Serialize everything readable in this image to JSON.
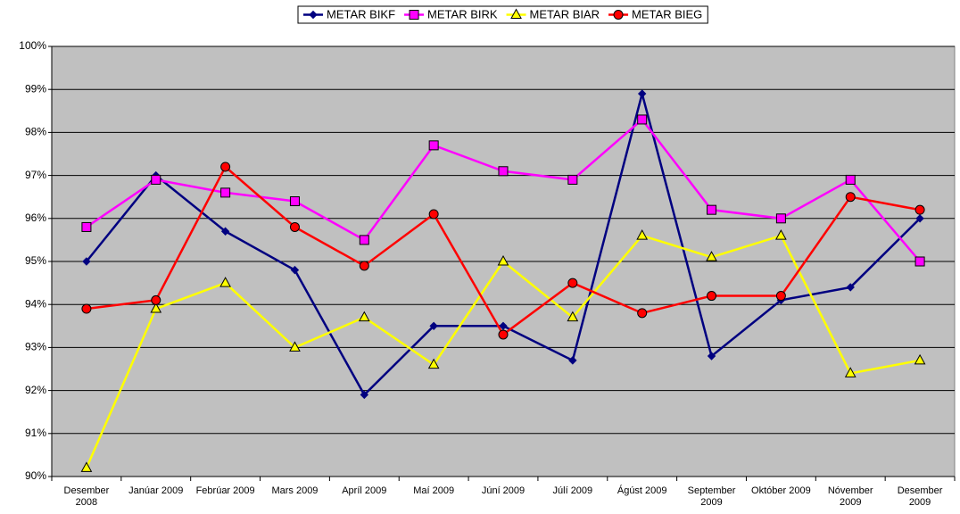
{
  "chart_data": {
    "type": "line",
    "categories": [
      "Desember 2008",
      "Janúar 2009",
      "Febrúar 2009",
      "Mars 2009",
      "Apríl 2009",
      "Maí 2009",
      "Júní 2009",
      "Júlí 2009",
      "Ágúst 2009",
      "September 2009",
      "Október 2009",
      "Nóvember 2009",
      "Desember 2009"
    ],
    "series": [
      {
        "name": "METAR BIKF",
        "color": "#000080",
        "marker": "diamond",
        "values": [
          95.0,
          97.0,
          95.7,
          94.8,
          91.9,
          93.5,
          93.5,
          92.7,
          98.9,
          92.8,
          94.1,
          94.4,
          96.0
        ]
      },
      {
        "name": "METAR BIRK",
        "color": "#ff00ff",
        "marker": "square",
        "values": [
          95.8,
          96.9,
          96.6,
          96.4,
          95.5,
          97.7,
          97.1,
          96.9,
          98.3,
          96.2,
          96.0,
          96.9,
          95.0
        ]
      },
      {
        "name": "METAR BIAR",
        "color": "#ffff00",
        "marker": "triangle",
        "values": [
          90.2,
          93.9,
          94.5,
          93.0,
          93.7,
          92.6,
          95.0,
          93.7,
          95.6,
          95.1,
          95.6,
          92.4,
          92.7
        ]
      },
      {
        "name": "METAR BIEG",
        "color": "#ff0000",
        "marker": "circle",
        "values": [
          93.9,
          94.1,
          97.2,
          95.8,
          94.9,
          96.1,
          93.3,
          94.5,
          93.8,
          94.2,
          94.2,
          96.5,
          96.2
        ]
      }
    ],
    "ylim": [
      90,
      100
    ],
    "yticks": [
      {
        "value": 90,
        "label": "90%"
      },
      {
        "value": 91,
        "label": "91%"
      },
      {
        "value": 92,
        "label": "92%"
      },
      {
        "value": 93,
        "label": "93%"
      },
      {
        "value": 94,
        "label": "94%"
      },
      {
        "value": 95,
        "label": "95%"
      },
      {
        "value": 96,
        "label": "96%"
      },
      {
        "value": 97,
        "label": "97%"
      },
      {
        "value": 98,
        "label": "98%"
      },
      {
        "value": 99,
        "label": "99%"
      },
      {
        "value": 100,
        "label": "100%"
      }
    ],
    "grid": true,
    "legend": "top"
  }
}
